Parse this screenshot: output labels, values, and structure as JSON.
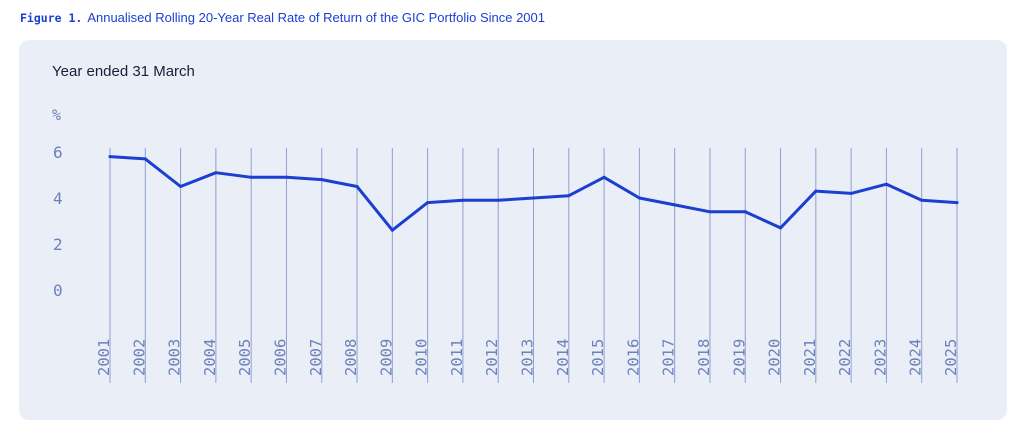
{
  "caption": {
    "label": "Figure 1.",
    "text": "Annualised Rolling 20-Year Real Rate of Return of the GIC Portfolio Since 2001"
  },
  "colors": {
    "line": "#1b3fd0",
    "grid": "#8f9ed3",
    "tick": "#6d82b8",
    "panel": "#eaeef7"
  },
  "chart_data": {
    "type": "line",
    "title": "Annualised Rolling 20-Year Real Rate of Return of the GIC Portfolio Since 2001",
    "subtitle": "Year ended 31 March",
    "ylabel": "%",
    "xlabel": "",
    "grid": "vertical",
    "ylim": [
      0,
      6
    ],
    "yticks": [
      "0",
      "2",
      "4",
      "6"
    ],
    "categories": [
      "2001",
      "2002",
      "2003",
      "2004",
      "2005",
      "2006",
      "2007",
      "2008",
      "2009",
      "2010",
      "2011",
      "2012",
      "2013",
      "2014",
      "2015",
      "2016",
      "2017",
      "2018",
      "2019",
      "2020",
      "2021",
      "2022",
      "2023",
      "2024",
      "2025"
    ],
    "series": [
      {
        "name": "Annualised Rolling 20-Year Real Rate of Return",
        "values": [
          5.8,
          5.7,
          4.5,
          5.1,
          4.9,
          4.9,
          4.8,
          4.5,
          2.6,
          3.8,
          3.9,
          3.9,
          4.0,
          4.1,
          4.9,
          4.0,
          3.7,
          3.4,
          3.4,
          2.7,
          4.3,
          4.2,
          4.6,
          3.9,
          3.8
        ]
      }
    ]
  }
}
